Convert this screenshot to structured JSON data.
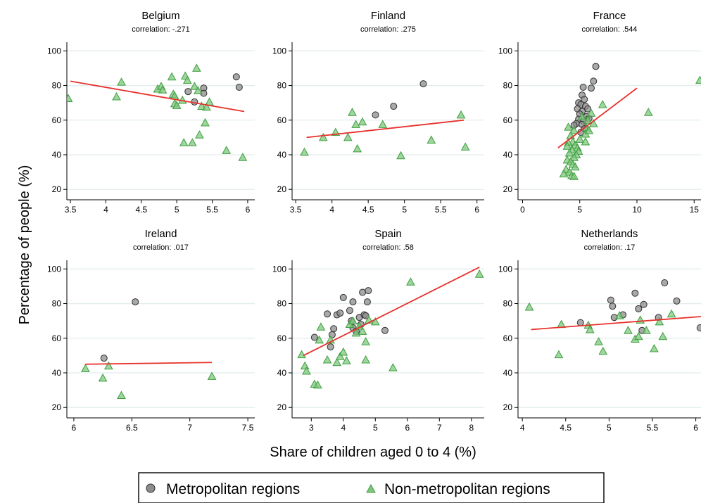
{
  "figure": {
    "ylabel": "Percentage of people  (%)",
    "xlabel": "Share of children aged  0 to 4  (%)",
    "legend": {
      "placement": "bottom-center",
      "entries": [
        {
          "label": "Metropolitan regions",
          "marker": "circle",
          "fill": "#8c8c8c",
          "stroke": "#2f2f2f"
        },
        {
          "label": "Non-metropolitan regions",
          "marker": "triangle",
          "fill": "#7fc77f",
          "stroke": "#3e9e3e"
        }
      ]
    },
    "colors": {
      "fit_line": "#e8302a",
      "gridline": "#e3ecec",
      "metro_fill": "#8c8c8c",
      "metro_stroke": "#2f2f2f",
      "nonmetro_fill": "#7fc77f",
      "nonmetro_stroke": "#3e9e3e"
    }
  },
  "chart_data": [
    {
      "type": "scatter",
      "title": "Belgium",
      "correlation_label": "correlation:  -.271",
      "xlim": [
        3.45,
        6.1
      ],
      "ylim": [
        14,
        105
      ],
      "xticks": [
        3.5,
        4,
        4.5,
        5,
        5.5,
        6
      ],
      "xtick_labels": [
        "3.5",
        "4",
        "4.5",
        "5",
        "5.5",
        "6"
      ],
      "yticks": [
        20,
        40,
        60,
        80,
        100
      ],
      "ytick_labels": [
        "20",
        "40",
        "60",
        "80",
        "100"
      ],
      "fit": [
        [
          3.5,
          82.5
        ],
        [
          5.95,
          65
        ]
      ],
      "series": [
        {
          "name": "Metropolitan regions",
          "points": [
            [
              5.16,
              76.5
            ],
            [
              5.25,
              70.5
            ],
            [
              5.38,
              78.5
            ],
            [
              5.38,
              75.5
            ],
            [
              5.84,
              85
            ],
            [
              5.88,
              79
            ]
          ]
        },
        {
          "name": "Non-metropolitan regions",
          "points": [
            [
              3.47,
              72.5
            ],
            [
              4.15,
              73.5
            ],
            [
              4.22,
              82
            ],
            [
              4.73,
              78
            ],
            [
              4.78,
              79.5
            ],
            [
              4.8,
              77.5
            ],
            [
              4.93,
              85
            ],
            [
              4.95,
              75
            ],
            [
              4.97,
              74
            ],
            [
              4.97,
              69.5
            ],
            [
              5.0,
              68.5
            ],
            [
              5.08,
              71.5
            ],
            [
              5.1,
              47
            ],
            [
              5.12,
              85.5
            ],
            [
              5.15,
              83
            ],
            [
              5.22,
              47
            ],
            [
              5.25,
              79.5
            ],
            [
              5.28,
              90
            ],
            [
              5.3,
              77
            ],
            [
              5.32,
              51.5
            ],
            [
              5.35,
              68
            ],
            [
              5.4,
              58.5
            ],
            [
              5.42,
              67.5
            ],
            [
              5.46,
              70.5
            ],
            [
              5.7,
              42.5
            ],
            [
              5.93,
              38.5
            ]
          ]
        }
      ]
    },
    {
      "type": "scatter",
      "title": "Finland",
      "correlation_label": "correlation:  .275",
      "xlim": [
        3.45,
        6.1
      ],
      "ylim": [
        14,
        105
      ],
      "xticks": [
        3.5,
        4,
        4.5,
        5,
        5.5,
        6
      ],
      "xtick_labels": [
        "3.5",
        "4",
        "4.5",
        "5",
        "5.5",
        "6"
      ],
      "yticks": [
        20,
        40,
        60,
        80,
        100
      ],
      "ytick_labels": [
        "20",
        "40",
        "60",
        "80",
        "100"
      ],
      "fit": [
        [
          3.65,
          50
        ],
        [
          5.82,
          60
        ]
      ],
      "series": [
        {
          "name": "Metropolitan regions",
          "points": [
            [
              4.6,
              63
            ],
            [
              4.85,
              68
            ],
            [
              5.26,
              81
            ]
          ]
        },
        {
          "name": "Non-metropolitan regions",
          "points": [
            [
              3.62,
              41.5
            ],
            [
              3.88,
              50
            ],
            [
              4.05,
              53
            ],
            [
              4.22,
              50
            ],
            [
              4.28,
              64.5
            ],
            [
              4.33,
              57.5
            ],
            [
              4.35,
              43.5
            ],
            [
              4.42,
              59
            ],
            [
              4.7,
              57.5
            ],
            [
              4.95,
              39.5
            ],
            [
              5.37,
              48.5
            ],
            [
              5.78,
              63
            ],
            [
              5.84,
              44.5
            ]
          ]
        }
      ]
    },
    {
      "type": "scatter",
      "title": "France",
      "correlation_label": "correlation:  .544",
      "xlim": [
        -0.4,
        15.6
      ],
      "ylim": [
        14,
        105
      ],
      "xticks": [
        0,
        5,
        10,
        15
      ],
      "xtick_labels": [
        "0",
        "5",
        "10",
        "15"
      ],
      "yticks": [
        20,
        40,
        60,
        80,
        100
      ],
      "ytick_labels": [
        "20",
        "40",
        "60",
        "80",
        "100"
      ],
      "fit": [
        [
          3.1,
          44
        ],
        [
          10,
          78.5
        ]
      ],
      "series": [
        {
          "name": "Metropolitan regions",
          "points": [
            [
              6.4,
              91
            ],
            [
              6.2,
              82.5
            ],
            [
              6.0,
              78.5
            ],
            [
              5.3,
              79
            ],
            [
              5.2,
              74.5
            ],
            [
              5.4,
              72
            ],
            [
              4.9,
              70
            ],
            [
              5.1,
              69
            ],
            [
              5.5,
              68
            ],
            [
              4.8,
              66.5
            ],
            [
              5.2,
              65
            ],
            [
              5.0,
              63.5
            ],
            [
              5.6,
              62
            ],
            [
              5.8,
              61
            ],
            [
              4.9,
              60.5
            ],
            [
              5.3,
              59.5
            ],
            [
              4.7,
              58
            ],
            [
              5.2,
              57.5
            ],
            [
              5.4,
              55
            ],
            [
              5.1,
              53
            ],
            [
              4.5,
              57
            ],
            [
              5.7,
              66.5
            ]
          ]
        },
        {
          "name": "Non-metropolitan regions",
          "points": [
            [
              15.5,
              83
            ],
            [
              11,
              64.5
            ],
            [
              7,
              69
            ],
            [
              6.0,
              64
            ],
            [
              5.7,
              60
            ],
            [
              6.2,
              58
            ],
            [
              5.6,
              55.5
            ],
            [
              5.5,
              52
            ],
            [
              4.0,
              56
            ],
            [
              4.5,
              54
            ],
            [
              4.2,
              51
            ],
            [
              5.0,
              49
            ],
            [
              4.4,
              47.5
            ],
            [
              4.6,
              45.5
            ],
            [
              4.8,
              44
            ],
            [
              4.3,
              43
            ],
            [
              4.9,
              42
            ],
            [
              4.1,
              41
            ],
            [
              4.7,
              40
            ],
            [
              4.5,
              38.5
            ],
            [
              3.9,
              37
            ],
            [
              4.2,
              36
            ],
            [
              4.4,
              34.5
            ],
            [
              4.6,
              33
            ],
            [
              3.8,
              31.5
            ],
            [
              4.1,
              30
            ],
            [
              3.6,
              29
            ],
            [
              4.3,
              28
            ],
            [
              4.5,
              27.5
            ],
            [
              5.2,
              62
            ],
            [
              5.8,
              54
            ],
            [
              4.0,
              47
            ],
            [
              5.5,
              47.5
            ],
            [
              3.9,
              45
            ]
          ]
        }
      ]
    },
    {
      "type": "scatter",
      "title": "Ireland",
      "correlation_label": "correlation:  .017",
      "xlim": [
        5.94,
        7.56
      ],
      "ylim": [
        14,
        105
      ],
      "xticks": [
        6,
        6.5,
        7,
        7.5
      ],
      "xtick_labels": [
        "6",
        "6.5",
        "7",
        "7.5"
      ],
      "yticks": [
        20,
        40,
        60,
        80,
        100
      ],
      "ytick_labels": [
        "20",
        "40",
        "60",
        "80",
        "100"
      ],
      "fit": [
        [
          6.1,
          45
        ],
        [
          7.19,
          46
        ]
      ],
      "series": [
        {
          "name": "Metropolitan regions",
          "points": [
            [
              6.26,
              48.5
            ],
            [
              6.53,
              81
            ]
          ]
        },
        {
          "name": "Non-metropolitan regions",
          "points": [
            [
              6.1,
              42.5
            ],
            [
              6.25,
              37
            ],
            [
              6.3,
              44
            ],
            [
              6.41,
              27
            ],
            [
              7.19,
              38
            ]
          ]
        }
      ]
    },
    {
      "type": "scatter",
      "title": "Spain",
      "correlation_label": "correlation:  .58",
      "xlim": [
        2.4,
        8.4
      ],
      "ylim": [
        14,
        105
      ],
      "xticks": [
        3,
        4,
        5,
        6,
        7,
        8
      ],
      "xtick_labels": [
        "3",
        "4",
        "5",
        "6",
        "7",
        "8"
      ],
      "yticks": [
        20,
        40,
        60,
        80,
        100
      ],
      "ytick_labels": [
        "20",
        "40",
        "60",
        "80",
        "100"
      ],
      "fit": [
        [
          2.75,
          50
        ],
        [
          8.25,
          101
        ]
      ],
      "series": [
        {
          "name": "Metropolitan regions",
          "points": [
            [
              3.1,
              60.5
            ],
            [
              3.5,
              74
            ],
            [
              3.6,
              55
            ],
            [
              3.65,
              62
            ],
            [
              3.7,
              65.5
            ],
            [
              3.8,
              73.5
            ],
            [
              3.9,
              74.5
            ],
            [
              4.0,
              83.5
            ],
            [
              4.2,
              76
            ],
            [
              4.25,
              70
            ],
            [
              4.3,
              81
            ],
            [
              4.3,
              66
            ],
            [
              4.4,
              64
            ],
            [
              4.5,
              72
            ],
            [
              4.55,
              68
            ],
            [
              4.6,
              86.5
            ],
            [
              4.65,
              73.5
            ],
            [
              4.7,
              73
            ],
            [
              4.75,
              81
            ],
            [
              4.78,
              87.5
            ],
            [
              5.3,
              64.5
            ]
          ]
        },
        {
          "name": "Non-metropolitan regions",
          "points": [
            [
              2.7,
              50.5
            ],
            [
              2.8,
              44
            ],
            [
              2.85,
              41
            ],
            [
              3.1,
              33.5
            ],
            [
              3.2,
              33
            ],
            [
              3.25,
              59
            ],
            [
              3.3,
              66.5
            ],
            [
              3.5,
              47.5
            ],
            [
              3.6,
              59
            ],
            [
              3.8,
              46
            ],
            [
              3.9,
              49.5
            ],
            [
              4.0,
              52
            ],
            [
              4.1,
              47
            ],
            [
              4.2,
              68
            ],
            [
              4.3,
              70
            ],
            [
              4.4,
              63
            ],
            [
              4.5,
              67
            ],
            [
              4.6,
              64
            ],
            [
              4.7,
              58
            ],
            [
              4.7,
              47.5
            ],
            [
              4.8,
              70.5
            ],
            [
              5.0,
              69.5
            ],
            [
              5.55,
              43
            ],
            [
              6.1,
              92.5
            ],
            [
              8.25,
              97
            ]
          ]
        }
      ]
    },
    {
      "type": "scatter",
      "title": "Netherlands",
      "correlation_label": "correlation:  .17",
      "xlim": [
        3.95,
        6.06
      ],
      "ylim": [
        14,
        105
      ],
      "xticks": [
        4,
        4.5,
        5,
        5.5,
        6
      ],
      "xtick_labels": [
        "4",
        "4.5",
        "5",
        "5.5",
        "6"
      ],
      "yticks": [
        20,
        40,
        60,
        80,
        100
      ],
      "ytick_labels": [
        "20",
        "40",
        "60",
        "80",
        "100"
      ],
      "fit": [
        [
          4.1,
          65
        ],
        [
          6.06,
          72.5
        ]
      ],
      "series": [
        {
          "name": "Metropolitan regions",
          "points": [
            [
              4.67,
              69
            ],
            [
              5.02,
              82
            ],
            [
              5.04,
              78.5
            ],
            [
              5.06,
              72
            ],
            [
              5.16,
              73.5
            ],
            [
              5.3,
              86
            ],
            [
              5.34,
              77
            ],
            [
              5.38,
              64.5
            ],
            [
              5.4,
              79.5
            ],
            [
              5.57,
              72
            ],
            [
              5.64,
              92
            ],
            [
              5.78,
              81.5
            ],
            [
              6.05,
              66
            ]
          ]
        },
        {
          "name": "Non-metropolitan regions",
          "points": [
            [
              4.08,
              78
            ],
            [
              4.42,
              50.5
            ],
            [
              4.45,
              68
            ],
            [
              4.76,
              67.5
            ],
            [
              4.78,
              65
            ],
            [
              4.88,
              58
            ],
            [
              4.93,
              52.5
            ],
            [
              5.12,
              73
            ],
            [
              5.22,
              64.5
            ],
            [
              5.3,
              59.5
            ],
            [
              5.34,
              61
            ],
            [
              5.36,
              70.5
            ],
            [
              5.43,
              64.5
            ],
            [
              5.52,
              54
            ],
            [
              5.58,
              69.5
            ],
            [
              5.62,
              61
            ],
            [
              5.72,
              74
            ]
          ]
        }
      ]
    }
  ]
}
